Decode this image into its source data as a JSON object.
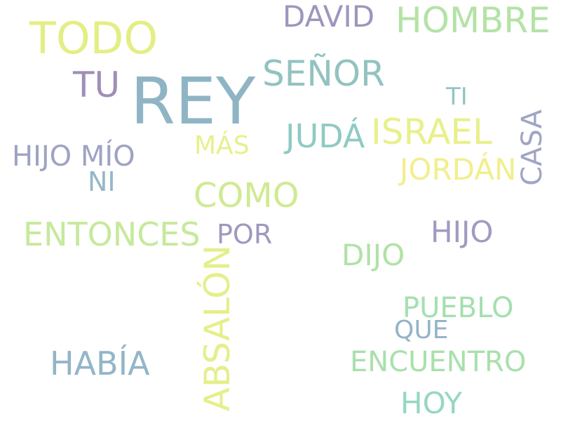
{
  "words": [
    {
      "text": "REY",
      "color": "#8fb5c5"
    },
    {
      "text": "TODO",
      "color": "#e4ee84"
    },
    {
      "text": "DAVID",
      "color": "#9f95bd"
    },
    {
      "text": "HOMBRE",
      "color": "#b3e3a6"
    },
    {
      "text": "SEÑOR",
      "color": "#92c3c0"
    },
    {
      "text": "TU",
      "color": "#a08eb8"
    },
    {
      "text": "TI",
      "color": "#93c5c2"
    },
    {
      "text": "ISRAEL",
      "color": "#e8f08b"
    },
    {
      "text": "JUDÁ",
      "color": "#8ecbc3"
    },
    {
      "text": "CASA",
      "color": "#a0a5c4"
    },
    {
      "text": "MÁS",
      "color": "#e7f08d"
    },
    {
      "text": "HIJO MÍO",
      "color": "#9ea3c2"
    },
    {
      "text": "JORDÁN",
      "color": "#f1ef8d"
    },
    {
      "text": "NI",
      "color": "#94b8c6"
    },
    {
      "text": "COMO",
      "color": "#d0ea91"
    },
    {
      "text": "ENTONCES",
      "color": "#c6e99c"
    },
    {
      "text": "POR",
      "color": "#9f98be"
    },
    {
      "text": "HIJO",
      "color": "#a19bc0"
    },
    {
      "text": "DIJO",
      "color": "#b0e2a6"
    },
    {
      "text": "ABSALÓN",
      "color": "#e5ef8a"
    },
    {
      "text": "PUEBLO",
      "color": "#a4e0b0"
    },
    {
      "text": "QUE",
      "color": "#94b4c8"
    },
    {
      "text": "HABÍA",
      "color": "#93b5c8"
    },
    {
      "text": "ENCUENTRO",
      "color": "#a9e0ac"
    },
    {
      "text": "HOY",
      "color": "#96d7c0"
    }
  ]
}
